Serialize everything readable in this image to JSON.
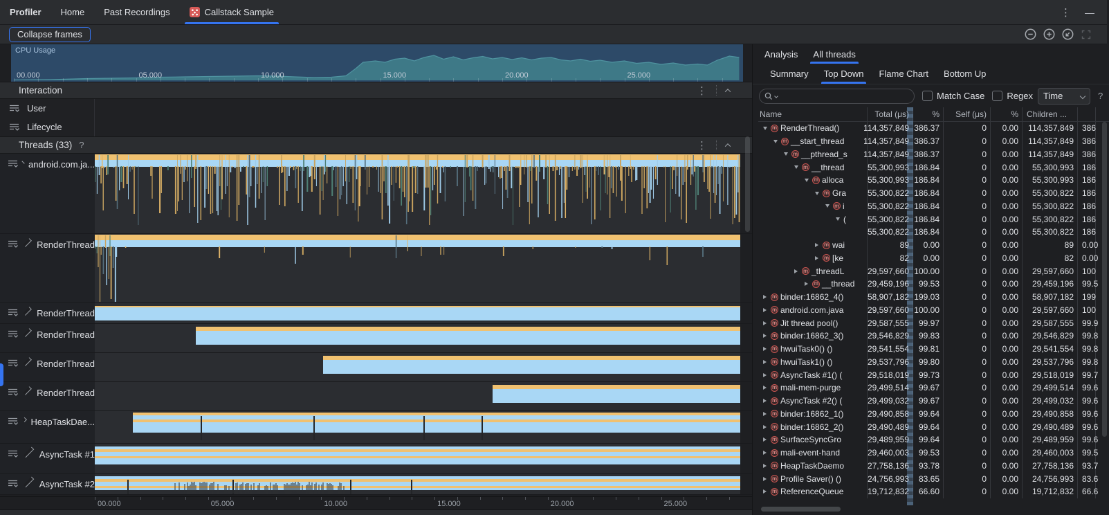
{
  "icons": {
    "kebab": "⋮",
    "minimize": "—",
    "method": "m"
  },
  "window": {
    "tabs": [
      {
        "label": "Profiler",
        "bold": true
      },
      {
        "label": "Home"
      },
      {
        "label": "Past Recordings"
      },
      {
        "label": "Callstack Sample",
        "active": true,
        "icon": "callstack-sample-icon"
      }
    ]
  },
  "toolbar": {
    "collapse_frames": "Collapse frames"
  },
  "cpu": {
    "label": "CPU Usage",
    "axis": [
      "00.000",
      "05.000",
      "10.000",
      "15.000",
      "20.000",
      "25.000"
    ],
    "area": [
      [
        0,
        1
      ],
      [
        1.5,
        2
      ],
      [
        3,
        5
      ],
      [
        4,
        6
      ],
      [
        5,
        7
      ],
      [
        6,
        9
      ],
      [
        7,
        10
      ],
      [
        8,
        11
      ],
      [
        9,
        12
      ],
      [
        10,
        13
      ],
      [
        10.8,
        12
      ],
      [
        11.5,
        10
      ],
      [
        12.3,
        8
      ],
      [
        13,
        9
      ],
      [
        13.6,
        13
      ],
      [
        14,
        34
      ],
      [
        14.3,
        52
      ],
      [
        14.8,
        56
      ],
      [
        15.2,
        52
      ],
      [
        15.6,
        61
      ],
      [
        16,
        64
      ],
      [
        16.4,
        56
      ],
      [
        16.8,
        66
      ],
      [
        17.2,
        72
      ],
      [
        17.6,
        61
      ],
      [
        18,
        68
      ],
      [
        18.4,
        59
      ],
      [
        18.8,
        65
      ],
      [
        19.2,
        69
      ],
      [
        19.6,
        62
      ],
      [
        20,
        66
      ],
      [
        20.4,
        60
      ],
      [
        20.8,
        65
      ],
      [
        21.2,
        59
      ],
      [
        21.6,
        64
      ],
      [
        22,
        66
      ],
      [
        22.4,
        59
      ],
      [
        22.8,
        56
      ],
      [
        23.2,
        61
      ],
      [
        23.6,
        55
      ],
      [
        24,
        58
      ],
      [
        24.5,
        52
      ],
      [
        25,
        56
      ],
      [
        25.5,
        49
      ],
      [
        26,
        52
      ],
      [
        26.5,
        46
      ],
      [
        27,
        50
      ],
      [
        27.5,
        44
      ],
      [
        28,
        47
      ],
      [
        28.4,
        44
      ],
      [
        28.8,
        58
      ],
      [
        29.3,
        70
      ],
      [
        29.7,
        66
      ]
    ]
  },
  "interaction": {
    "title": "Interaction",
    "rows": [
      {
        "label": "User"
      },
      {
        "label": "Lifecycle"
      }
    ]
  },
  "threads": {
    "title": "Threads (33)",
    "help": "?",
    "axis": [
      "00.000",
      "05.000",
      "10.000",
      "15.000",
      "20.000",
      "25.000"
    ],
    "rows": [
      {
        "name": "android.com.ja...",
        "h": 116,
        "track": {
          "type": "flame",
          "variant": "dense"
        }
      },
      {
        "name": "RenderThread",
        "h": 100,
        "track": {
          "type": "flame",
          "variant": "sparse"
        }
      },
      {
        "name": "RenderThread",
        "h": 30,
        "track": {
          "type": "bar-plain",
          "start": 0
        }
      },
      {
        "name": "RenderThread",
        "h": 42,
        "track": {
          "type": "bar-solid",
          "start": 0.157
        }
      },
      {
        "name": "RenderThread",
        "h": 42,
        "track": {
          "type": "bar-solid",
          "start": 0.354
        }
      },
      {
        "name": "RenderThread",
        "h": 42,
        "track": {
          "type": "bar-solid",
          "start": 0.616
        }
      },
      {
        "name": "HeapTaskDae...",
        "h": 47,
        "track": {
          "type": "bar-heap",
          "start": 0.059,
          "ticks": [
            0.165,
            0.34,
            0.51,
            0.6
          ]
        }
      },
      {
        "name": "AsyncTask #1",
        "h": 44,
        "track": {
          "type": "bar-async",
          "start": 0
        }
      },
      {
        "name": "AsyncTask #2",
        "h": 30,
        "track": {
          "type": "bar-async",
          "start": 0,
          "ticks": [
            0.051,
            0.214,
            0.397,
            0.491
          ],
          "noise": [
            0.12,
            0.39
          ]
        }
      }
    ]
  },
  "analysis": {
    "tabs": [
      {
        "label": "Analysis"
      },
      {
        "label": "All threads",
        "active": true
      }
    ],
    "subtabs": [
      {
        "label": "Summary"
      },
      {
        "label": "Top Down",
        "active": true
      },
      {
        "label": "Flame Chart"
      },
      {
        "label": "Bottom Up"
      }
    ],
    "search": {
      "value": "",
      "match_case": "Match Case",
      "regex": "Regex",
      "range": "Time",
      "help": "?"
    },
    "table": {
      "columns": [
        "Name",
        "Total (μs)",
        "%",
        "Self (μs)",
        "%",
        "Children ...",
        ""
      ],
      "rows": [
        {
          "indent": 0,
          "state": "expanded",
          "icon": true,
          "name": "RenderThread()",
          "total": "114,357,849",
          "total_pct": "386.37",
          "self": "0",
          "self_pct": "0.00",
          "children": "114,357,849",
          "children_pct": "386"
        },
        {
          "indent": 1,
          "state": "expanded",
          "icon": true,
          "name": "__start_thread",
          "total": "114,357,849",
          "total_pct": "386.37",
          "self": "0",
          "self_pct": "0.00",
          "children": "114,357,849",
          "children_pct": "386"
        },
        {
          "indent": 2,
          "state": "expanded",
          "icon": true,
          "name": "__pthread_s",
          "total": "114,357,849",
          "total_pct": "386.37",
          "self": "0",
          "self_pct": "0.00",
          "children": "114,357,849",
          "children_pct": "386"
        },
        {
          "indent": 3,
          "state": "expanded",
          "icon": true,
          "name": "__thread",
          "total": "55,300,993",
          "total_pct": "186.84",
          "self": "0",
          "self_pct": "0.00",
          "children": "55,300,993",
          "children_pct": "186"
        },
        {
          "indent": 4,
          "state": "expanded",
          "icon": true,
          "name": "alloca",
          "total": "55,300,993",
          "total_pct": "186.84",
          "self": "0",
          "self_pct": "0.00",
          "children": "55,300,993",
          "children_pct": "186"
        },
        {
          "indent": 5,
          "state": "expanded",
          "icon": true,
          "name": "Gra",
          "total": "55,300,822",
          "total_pct": "186.84",
          "self": "0",
          "self_pct": "0.00",
          "children": "55,300,822",
          "children_pct": "186"
        },
        {
          "indent": 6,
          "state": "expanded",
          "icon": true,
          "name": "i",
          "total": "55,300,822",
          "total_pct": "186.84",
          "self": "0",
          "self_pct": "0.00",
          "children": "55,300,822",
          "children_pct": "186"
        },
        {
          "indent": 7,
          "state": "expanded",
          "icon": false,
          "name": "(",
          "total": "55,300,822",
          "total_pct": "186.84",
          "self": "0",
          "self_pct": "0.00",
          "children": "55,300,822",
          "children_pct": "186"
        },
        {
          "indent": 8,
          "state": "none",
          "icon": false,
          "name": "",
          "total": "55,300,822",
          "total_pct": "186.84",
          "self": "0",
          "self_pct": "0.00",
          "children": "55,300,822",
          "children_pct": "186"
        },
        {
          "indent": 5,
          "state": "collapsed",
          "icon": true,
          "name": "wai",
          "total": "89",
          "total_pct": "0.00",
          "self": "0",
          "self_pct": "0.00",
          "children": "89",
          "children_pct": "0.00"
        },
        {
          "indent": 5,
          "state": "collapsed",
          "icon": true,
          "name": "[ke",
          "total": "82",
          "total_pct": "0.00",
          "self": "0",
          "self_pct": "0.00",
          "children": "82",
          "children_pct": "0.00"
        },
        {
          "indent": 3,
          "state": "collapsed",
          "icon": true,
          "name": "_threadL",
          "total": "29,597,660",
          "total_pct": "100.00",
          "self": "0",
          "self_pct": "0.00",
          "children": "29,597,660",
          "children_pct": "100"
        },
        {
          "indent": 4,
          "state": "collapsed",
          "icon": true,
          "name": "__thread",
          "total": "29,459,196",
          "total_pct": "99.53",
          "self": "0",
          "self_pct": "0.00",
          "children": "29,459,196",
          "children_pct": "99.5"
        },
        {
          "indent": 0,
          "state": "collapsed",
          "icon": true,
          "name": "binder:16862_4()",
          "total": "58,907,182",
          "total_pct": "199.03",
          "self": "0",
          "self_pct": "0.00",
          "children": "58,907,182",
          "children_pct": "199"
        },
        {
          "indent": 0,
          "state": "collapsed",
          "icon": true,
          "name": "android.com.java",
          "total": "29,597,660",
          "total_pct": "100.00",
          "self": "0",
          "self_pct": "0.00",
          "children": "29,597,660",
          "children_pct": "100"
        },
        {
          "indent": 0,
          "state": "collapsed",
          "icon": true,
          "name": "Jit thread pool()",
          "total": "29,587,555",
          "total_pct": "99.97",
          "self": "0",
          "self_pct": "0.00",
          "children": "29,587,555",
          "children_pct": "99.9"
        },
        {
          "indent": 0,
          "state": "collapsed",
          "icon": true,
          "name": "binder:16862_3()",
          "total": "29,546,829",
          "total_pct": "99.83",
          "self": "0",
          "self_pct": "0.00",
          "children": "29,546,829",
          "children_pct": "99.8"
        },
        {
          "indent": 0,
          "state": "collapsed",
          "icon": true,
          "name": "hwuiTask0() ()",
          "total": "29,541,554",
          "total_pct": "99.81",
          "self": "0",
          "self_pct": "0.00",
          "children": "29,541,554",
          "children_pct": "99.8"
        },
        {
          "indent": 0,
          "state": "collapsed",
          "icon": true,
          "name": "hwuiTask1() ()",
          "total": "29,537,796",
          "total_pct": "99.80",
          "self": "0",
          "self_pct": "0.00",
          "children": "29,537,796",
          "children_pct": "99.8"
        },
        {
          "indent": 0,
          "state": "collapsed",
          "icon": true,
          "name": "AsyncTask #1() (",
          "total": "29,518,019",
          "total_pct": "99.73",
          "self": "0",
          "self_pct": "0.00",
          "children": "29,518,019",
          "children_pct": "99.7"
        },
        {
          "indent": 0,
          "state": "collapsed",
          "icon": true,
          "name": "mali-mem-purge",
          "total": "29,499,514",
          "total_pct": "99.67",
          "self": "0",
          "self_pct": "0.00",
          "children": "29,499,514",
          "children_pct": "99.6"
        },
        {
          "indent": 0,
          "state": "collapsed",
          "icon": true,
          "name": "AsyncTask #2() (",
          "total": "29,499,032",
          "total_pct": "99.67",
          "self": "0",
          "self_pct": "0.00",
          "children": "29,499,032",
          "children_pct": "99.6"
        },
        {
          "indent": 0,
          "state": "collapsed",
          "icon": true,
          "name": "binder:16862_1()",
          "total": "29,490,858",
          "total_pct": "99.64",
          "self": "0",
          "self_pct": "0.00",
          "children": "29,490,858",
          "children_pct": "99.6"
        },
        {
          "indent": 0,
          "state": "collapsed",
          "icon": true,
          "name": "binder:16862_2()",
          "total": "29,490,489",
          "total_pct": "99.64",
          "self": "0",
          "self_pct": "0.00",
          "children": "29,490,489",
          "children_pct": "99.6"
        },
        {
          "indent": 0,
          "state": "collapsed",
          "icon": true,
          "name": "SurfaceSyncGro",
          "total": "29,489,959",
          "total_pct": "99.64",
          "self": "0",
          "self_pct": "0.00",
          "children": "29,489,959",
          "children_pct": "99.6"
        },
        {
          "indent": 0,
          "state": "collapsed",
          "icon": true,
          "name": "mali-event-hand",
          "total": "29,460,003",
          "total_pct": "99.53",
          "self": "0",
          "self_pct": "0.00",
          "children": "29,460,003",
          "children_pct": "99.5"
        },
        {
          "indent": 0,
          "state": "collapsed",
          "icon": true,
          "name": "HeapTaskDaemo",
          "total": "27,758,136",
          "total_pct": "93.78",
          "self": "0",
          "self_pct": "0.00",
          "children": "27,758,136",
          "children_pct": "93.7"
        },
        {
          "indent": 0,
          "state": "collapsed",
          "icon": true,
          "name": "Profile Saver() ()",
          "total": "24,756,993",
          "total_pct": "83.65",
          "self": "0",
          "self_pct": "0.00",
          "children": "24,756,993",
          "children_pct": "83.6"
        },
        {
          "indent": 0,
          "state": "collapsed",
          "icon": true,
          "name": "ReferenceQueue",
          "total": "19,712,832",
          "total_pct": "66.60",
          "self": "0",
          "self_pct": "0.00",
          "children": "19,712,832",
          "children_pct": "66.6"
        }
      ]
    }
  }
}
